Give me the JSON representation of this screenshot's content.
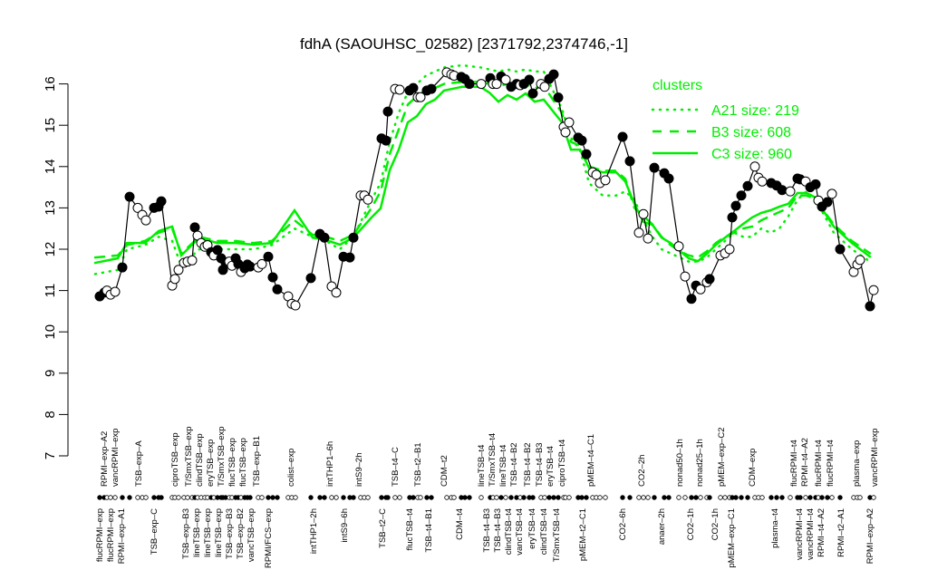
{
  "chart_data": {
    "type": "line",
    "title": "fdhA (SAOUHSC_02582) [2371792,2374746,-1]",
    "xlabel": "",
    "ylabel": "",
    "xlim": [
      -1,
      173
    ],
    "ylim": [
      7,
      16.5
    ],
    "yticks": [
      7,
      8,
      9,
      10,
      11,
      12,
      13,
      14,
      15,
      16
    ],
    "grid": false,
    "colors": {
      "samples": "#000000",
      "clusters": "#00ee00"
    },
    "legend": {
      "placement": "top-right",
      "title": "clusters",
      "entries": [
        {
          "label": "A21 size: 219",
          "style": "dotted"
        },
        {
          "label": "B3 size: 608",
          "style": "dashed"
        },
        {
          "label": "C3 size: 960",
          "style": "solid"
        }
      ]
    },
    "points": [
      [
        1.0,
        10.86,
        1
      ],
      [
        2.0,
        10.95,
        1
      ],
      [
        2.6,
        11.0,
        0
      ],
      [
        3.4,
        10.9,
        0
      ],
      [
        4.4,
        10.97,
        0
      ],
      [
        6.0,
        11.56,
        1
      ],
      [
        7.6,
        13.27,
        1
      ],
      [
        9.4,
        13.0,
        0
      ],
      [
        10.4,
        12.83,
        0
      ],
      [
        11.2,
        12.7,
        0
      ],
      [
        13.0,
        13.0,
        1
      ],
      [
        14.0,
        13.03,
        1
      ],
      [
        14.6,
        13.16,
        1
      ],
      [
        17.0,
        11.12,
        0
      ],
      [
        17.6,
        11.28,
        0
      ],
      [
        18.4,
        11.5,
        0
      ],
      [
        19.6,
        11.67,
        0
      ],
      [
        20.4,
        11.7,
        0
      ],
      [
        21.4,
        11.73,
        0
      ],
      [
        22.0,
        12.53,
        1
      ],
      [
        22.6,
        12.33,
        0
      ],
      [
        23.4,
        12.15,
        0
      ],
      [
        24.2,
        12.06,
        0
      ],
      [
        24.8,
        12.1,
        0
      ],
      [
        25.6,
        11.93,
        1
      ],
      [
        26.2,
        11.85,
        0
      ],
      [
        27.0,
        11.98,
        1
      ],
      [
        27.8,
        11.78,
        1
      ],
      [
        28.2,
        11.5,
        1
      ],
      [
        28.8,
        11.67,
        1
      ],
      [
        29.6,
        11.7,
        0
      ],
      [
        30.2,
        11.6,
        0
      ],
      [
        31.0,
        11.78,
        1
      ],
      [
        31.6,
        11.64,
        1
      ],
      [
        32.2,
        11.45,
        0
      ],
      [
        33.0,
        11.54,
        1
      ],
      [
        33.6,
        11.63,
        1
      ],
      [
        34.2,
        11.58,
        1
      ],
      [
        36.0,
        11.56,
        0
      ],
      [
        36.8,
        11.64,
        0
      ],
      [
        38.2,
        11.82,
        1
      ],
      [
        39.2,
        11.32,
        1
      ],
      [
        40.2,
        11.03,
        1
      ],
      [
        42.6,
        10.86,
        0
      ],
      [
        43.4,
        10.68,
        0
      ],
      [
        44.2,
        10.64,
        0
      ],
      [
        47.6,
        11.3,
        1
      ],
      [
        49.6,
        12.37,
        1
      ],
      [
        50.6,
        12.28,
        1
      ],
      [
        52.2,
        11.1,
        0
      ],
      [
        53.2,
        10.95,
        0
      ],
      [
        54.8,
        11.82,
        1
      ],
      [
        56.2,
        11.8,
        1
      ],
      [
        57.0,
        12.28,
        1
      ],
      [
        58.6,
        13.3,
        0
      ],
      [
        59.4,
        13.3,
        0
      ],
      [
        60.2,
        13.2,
        0
      ],
      [
        63.2,
        14.68,
        1
      ],
      [
        64.2,
        14.63,
        1
      ],
      [
        64.6,
        15.33,
        1
      ],
      [
        66.2,
        15.88,
        0
      ],
      [
        67.2,
        15.86,
        0
      ],
      [
        69.4,
        15.84,
        1
      ],
      [
        70.2,
        15.9,
        1
      ],
      [
        71.2,
        15.68,
        0
      ],
      [
        71.8,
        15.68,
        0
      ],
      [
        73.2,
        15.84,
        1
      ],
      [
        74.2,
        15.88,
        1
      ],
      [
        77.6,
        16.28,
        0
      ],
      [
        78.6,
        16.23,
        0
      ],
      [
        79.2,
        16.2,
        0
      ],
      [
        80.8,
        16.17,
        1
      ],
      [
        81.6,
        16.12,
        1
      ],
      [
        82.6,
        16.0,
        1
      ],
      [
        85.2,
        16.0,
        0
      ],
      [
        87.2,
        16.14,
        1
      ],
      [
        87.8,
        16.0,
        0
      ],
      [
        88.6,
        16.0,
        0
      ],
      [
        89.6,
        16.18,
        1
      ],
      [
        90.6,
        16.1,
        0
      ],
      [
        91.8,
        15.93,
        1
      ],
      [
        93.0,
        16.0,
        1
      ],
      [
        93.8,
        15.97,
        0
      ],
      [
        94.6,
        16.0,
        1
      ],
      [
        95.8,
        16.1,
        1
      ],
      [
        96.6,
        15.77,
        1
      ],
      [
        98.4,
        16.0,
        0
      ],
      [
        99.2,
        15.93,
        0
      ],
      [
        100.2,
        16.12,
        1
      ],
      [
        101.2,
        16.23,
        1
      ],
      [
        102.2,
        15.67,
        1
      ],
      [
        103.4,
        14.96,
        0
      ],
      [
        103.8,
        14.83,
        0
      ],
      [
        104.6,
        15.07,
        0
      ],
      [
        106.6,
        14.7,
        1
      ],
      [
        107.4,
        14.63,
        1
      ],
      [
        108.4,
        14.3,
        1
      ],
      [
        109.8,
        13.86,
        0
      ],
      [
        110.6,
        13.8,
        0
      ],
      [
        111.4,
        13.6,
        0
      ],
      [
        112.6,
        13.67,
        0
      ],
      [
        116.4,
        14.72,
        1
      ],
      [
        118.0,
        14.13,
        1
      ],
      [
        120.0,
        12.4,
        0
      ],
      [
        121.0,
        12.85,
        0
      ],
      [
        122.0,
        12.26,
        0
      ],
      [
        123.4,
        13.97,
        1
      ],
      [
        125.6,
        13.84,
        1
      ],
      [
        126.6,
        13.71,
        1
      ],
      [
        128.8,
        12.07,
        0
      ],
      [
        130.2,
        11.34,
        0
      ],
      [
        131.6,
        10.8,
        1
      ],
      [
        132.6,
        11.12,
        1
      ],
      [
        133.6,
        11.03,
        0
      ],
      [
        135.0,
        11.2,
        0
      ],
      [
        135.6,
        11.28,
        1
      ],
      [
        138.0,
        11.85,
        0
      ],
      [
        139.0,
        11.9,
        0
      ],
      [
        140.0,
        12.0,
        0
      ],
      [
        140.6,
        12.77,
        1
      ],
      [
        141.4,
        13.05,
        1
      ],
      [
        142.6,
        13.3,
        1
      ],
      [
        144.0,
        13.53,
        1
      ],
      [
        145.6,
        14.0,
        0
      ],
      [
        146.4,
        13.73,
        0
      ],
      [
        147.2,
        13.64,
        0
      ],
      [
        149.2,
        13.6,
        1
      ],
      [
        150.4,
        13.54,
        1
      ],
      [
        151.6,
        13.43,
        1
      ],
      [
        153.4,
        13.4,
        0
      ],
      [
        155.0,
        13.71,
        1
      ],
      [
        155.6,
        13.69,
        1
      ],
      [
        156.8,
        13.64,
        0
      ],
      [
        157.8,
        13.5,
        1
      ],
      [
        159.0,
        13.57,
        1
      ],
      [
        159.6,
        13.18,
        0
      ],
      [
        160.4,
        13.03,
        1
      ],
      [
        161.6,
        13.14,
        1
      ],
      [
        162.6,
        13.34,
        0
      ],
      [
        164.4,
        12.0,
        1
      ],
      [
        167.4,
        11.45,
        0
      ],
      [
        168.2,
        11.63,
        0
      ],
      [
        168.8,
        11.74,
        0
      ],
      [
        171.0,
        10.62,
        1
      ],
      [
        171.8,
        11.01,
        0
      ]
    ],
    "cluster_x": [
      0,
      5,
      7,
      11,
      14,
      17,
      19,
      23,
      27,
      31,
      35,
      39,
      44,
      48,
      51,
      54,
      57,
      61,
      63,
      65,
      67,
      69,
      71,
      73,
      75,
      77,
      81,
      85,
      87,
      89,
      91,
      93,
      95,
      97,
      99,
      103,
      105,
      107,
      109,
      112,
      115,
      117,
      119,
      121,
      123,
      125,
      127,
      129,
      131,
      133,
      135,
      137,
      139,
      141,
      143,
      145,
      147,
      149,
      151,
      153,
      155,
      157,
      159,
      161,
      163,
      167,
      171
    ],
    "series": [
      {
        "name": "C3 size: 960",
        "style": "solid",
        "values": [
          11.67,
          11.78,
          12.15,
          12.15,
          12.44,
          12.55,
          11.85,
          12.28,
          12.15,
          12.15,
          12.11,
          12.15,
          12.94,
          12.28,
          12.22,
          12.11,
          12.28,
          12.77,
          12.99,
          13.91,
          14.41,
          15.07,
          15.22,
          15.51,
          15.62,
          15.84,
          15.93,
          15.93,
          15.79,
          15.57,
          15.73,
          15.62,
          15.77,
          15.57,
          15.62,
          15.07,
          14.41,
          14.41,
          13.97,
          13.86,
          13.86,
          13.64,
          13.1,
          12.66,
          12.59,
          12.28,
          12.15,
          11.96,
          11.78,
          11.71,
          11.89,
          12.11,
          12.28,
          12.44,
          12.61,
          12.77,
          12.88,
          12.94,
          13.03,
          13.1,
          13.36,
          13.36,
          13.25,
          12.88,
          12.55,
          12.15,
          11.82
        ]
      },
      {
        "name": "B3 size: 608",
        "style": "dashed",
        "values": [
          11.8,
          11.85,
          12.1,
          12.2,
          12.4,
          12.5,
          11.9,
          12.3,
          12.2,
          12.2,
          12.15,
          12.2,
          12.7,
          12.35,
          12.3,
          12.2,
          12.35,
          13.0,
          13.4,
          14.3,
          14.9,
          15.5,
          15.7,
          15.85,
          15.9,
          16.0,
          16.05,
          16.05,
          16.0,
          15.95,
          16.0,
          15.95,
          16.0,
          15.9,
          15.95,
          15.3,
          14.6,
          14.5,
          14.0,
          13.9,
          13.9,
          13.7,
          13.0,
          12.8,
          12.6,
          12.3,
          12.1,
          11.95,
          11.85,
          11.8,
          11.95,
          12.15,
          12.3,
          12.4,
          12.5,
          12.55,
          12.7,
          12.8,
          12.9,
          13.0,
          13.3,
          13.3,
          13.2,
          12.9,
          12.6,
          12.2,
          11.9
        ]
      },
      {
        "name": "A21 size: 219",
        "style": "dotted",
        "values": [
          11.4,
          11.5,
          12.0,
          12.1,
          12.3,
          12.2,
          11.6,
          12.0,
          12.0,
          12.0,
          12.0,
          12.1,
          12.5,
          12.3,
          12.2,
          12.0,
          12.3,
          13.2,
          13.6,
          14.6,
          15.3,
          15.8,
          16.0,
          16.2,
          16.3,
          16.4,
          16.45,
          16.4,
          16.35,
          16.3,
          16.35,
          16.3,
          16.35,
          16.3,
          16.3,
          15.4,
          14.7,
          14.4,
          13.6,
          13.3,
          13.3,
          13.4,
          13.2,
          12.7,
          12.3,
          12.0,
          11.9,
          11.8,
          11.7,
          11.7,
          11.8,
          12.0,
          12.2,
          12.4,
          12.3,
          12.3,
          12.5,
          12.4,
          12.5,
          12.8,
          13.2,
          13.4,
          13.2,
          12.8,
          12.4,
          12.0,
          11.7
        ]
      }
    ],
    "x_labels_top": [
      [
        2,
        "RPMI–exp–A2"
      ],
      [
        4,
        "vancRPMI–exp"
      ],
      [
        9.6,
        "TSB–exp–A"
      ],
      [
        17.6,
        "ciproTSB–exp"
      ],
      [
        20.6,
        "T/SmxTSB–exp"
      ],
      [
        22.8,
        "clindTSB–exp"
      ],
      [
        25.4,
        "eryTSB–exp"
      ],
      [
        27.8,
        "T/SmxTSB–exp"
      ],
      [
        29.4,
        "flucTSB–exp"
      ],
      [
        31.6,
        "flucTSB–exp"
      ],
      [
        35.6,
        "TSB–exp–B1"
      ],
      [
        43.2,
        "colist–exp"
      ],
      [
        51.8,
        "intTHP1–6h"
      ],
      [
        58.2,
        "intS9–2h"
      ],
      [
        66.2,
        "TSB–t4–C"
      ],
      [
        71.2,
        "TSB–t2–B1"
      ],
      [
        77,
        "CDM–t2"
      ],
      [
        85.2,
        "lineTSB–t4"
      ],
      [
        87.2,
        "T/SmxTSB–t4"
      ],
      [
        89.4,
        "lineTSB–t4"
      ],
      [
        92,
        "TSB–t4–B2"
      ],
      [
        95.4,
        "TSB–t4–B2"
      ],
      [
        98,
        "TSB–t4–B3"
      ],
      [
        100,
        "eryTSB–t4"
      ],
      [
        103,
        "ciproTSB–t4"
      ],
      [
        109.4,
        "pMEM–t4–C1"
      ],
      [
        120.6,
        "CO2–2h"
      ],
      [
        129,
        "nonad50–1h"
      ],
      [
        133.4,
        "nonad25–1h"
      ],
      [
        138.2,
        "pMEM–exp–C2"
      ],
      [
        145,
        "CDM–exp"
      ],
      [
        154.2,
        "flucRPMI–t4"
      ],
      [
        155.8,
        "RPMI–t4–A2"
      ],
      [
        159.6,
        "flucRPMI–t4"
      ],
      [
        162.2,
        "flucRPMI–t4"
      ],
      [
        168,
        "plasma–exp"
      ],
      [
        172,
        "vancRPMI–exp"
      ]
    ],
    "x_labels_bottom": [
      [
        1,
        "flucRPMI–exp"
      ],
      [
        3,
        "flucRPMI–exp"
      ],
      [
        5.6,
        "RPMI–exp–A1"
      ],
      [
        13,
        "TSB–exp–C"
      ],
      [
        20,
        "TSB–exp–B3"
      ],
      [
        22,
        "lineTSB–exp"
      ],
      [
        24.6,
        "lineTSB–exp"
      ],
      [
        27.2,
        "lineTSB–exp"
      ],
      [
        28.2,
        "TSB–exp–B3"
      ],
      [
        30.2,
        "TSB–exp–B2"
      ],
      [
        32.6,
        "vancTSB–exp"
      ],
      [
        38.2,
        "RPMI/FCS–exp"
      ],
      [
        48.2,
        "intTHP1–2h"
      ],
      [
        55,
        "intS9–6h"
      ],
      [
        63.4,
        "TSB–t2–C"
      ],
      [
        69.4,
        "flucTSB–t4"
      ],
      [
        73.6,
        "TSB–t4–B1"
      ],
      [
        80.4,
        "CDM–t4"
      ],
      [
        86.4,
        "TSB–t4–B3"
      ],
      [
        88.8,
        "TSB–t4–B3"
      ],
      [
        91,
        "clindTSB–t4"
      ],
      [
        93.6,
        "vancTSB–t4"
      ],
      [
        96.4,
        "eryTSB–t4"
      ],
      [
        99,
        "clindTSB–t4"
      ],
      [
        101.8,
        "T/SmxTSB–t4"
      ],
      [
        107.6,
        "pMEM–t2–C1"
      ],
      [
        116.4,
        "CO2–6h"
      ],
      [
        125,
        "anaer–2h"
      ],
      [
        131.4,
        "CO2–1h"
      ],
      [
        136.8,
        "CO2–1h"
      ],
      [
        140.4,
        "pMEM–exp–C1"
      ],
      [
        150,
        "plasma–t4"
      ],
      [
        155.4,
        "vancRPMI–t4"
      ],
      [
        156.8,
        "vancRPMI–t4"
      ],
      [
        159.6,
        "RPMI–t4–A2"
      ],
      [
        164.6,
        "RPMI–t2–A1"
      ],
      [
        171,
        "RPMI–exp–A2"
      ]
    ]
  }
}
